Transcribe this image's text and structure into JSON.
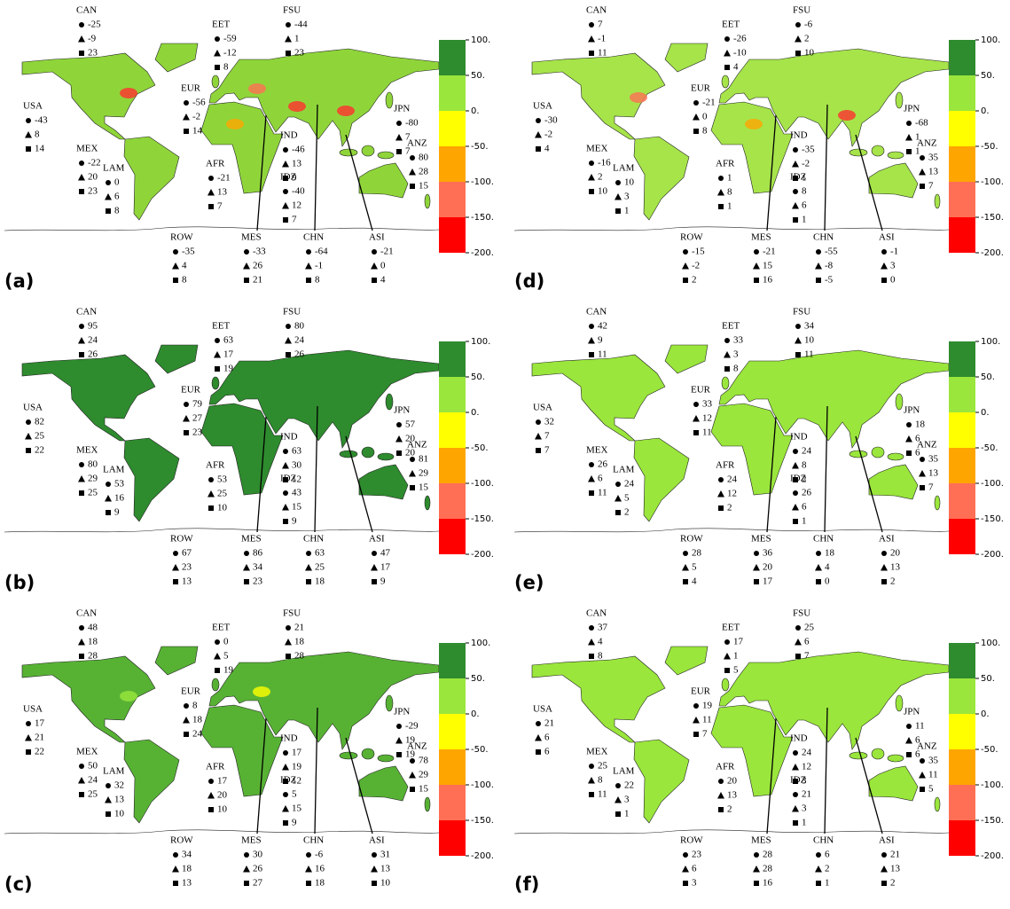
{
  "colorbar": {
    "ylim": [
      -200,
      100
    ],
    "ticks": [
      {
        "value": 100,
        "label": "100."
      },
      {
        "value": 50,
        "label": "50."
      },
      {
        "value": 0,
        "label": "0."
      },
      {
        "value": -50,
        "label": "-50."
      },
      {
        "value": -100,
        "label": "-100."
      },
      {
        "value": -150,
        "label": "-150."
      },
      {
        "value": -200,
        "label": "-200."
      }
    ],
    "colors": [
      "#2e8b2e",
      "#9ae63c",
      "#ffff00",
      "#ffa500",
      "#ff6f55",
      "#ff0000"
    ]
  },
  "panels": [
    {
      "label": "(a)",
      "regions": [
        {
          "name": "CAN",
          "values": [
            -25,
            -9,
            23
          ]
        },
        {
          "name": "EET",
          "values": [
            -59,
            -12,
            8
          ]
        },
        {
          "name": "FSU",
          "values": [
            -44,
            1,
            23
          ]
        },
        {
          "name": "USA",
          "values": [
            -43,
            8,
            14
          ]
        },
        {
          "name": "MEX",
          "values": [
            -22,
            20,
            23
          ]
        },
        {
          "name": "LAM",
          "values": [
            0,
            6,
            8
          ]
        },
        {
          "name": "EUR",
          "values": [
            -56,
            -2,
            14
          ]
        },
        {
          "name": "AFR",
          "values": [
            -21,
            13,
            7
          ]
        },
        {
          "name": "JPN",
          "values": [
            -80,
            7,
            7
          ]
        },
        {
          "name": "IND",
          "values": [
            -46,
            13,
            9
          ]
        },
        {
          "name": "IDZ",
          "values": [
            -40,
            12,
            7
          ]
        },
        {
          "name": "ANZ",
          "values": [
            80,
            28,
            15
          ]
        },
        {
          "name": "ROW",
          "values": [
            -35,
            4,
            8
          ]
        },
        {
          "name": "MES",
          "values": [
            -33,
            26,
            21
          ]
        },
        {
          "name": "CHN",
          "values": [
            -64,
            -1,
            8
          ]
        },
        {
          "name": "ASI",
          "values": [
            -21,
            0,
            4
          ]
        }
      ]
    },
    {
      "label": "(b)",
      "regions": [
        {
          "name": "CAN",
          "values": [
            95,
            24,
            26
          ]
        },
        {
          "name": "EET",
          "values": [
            63,
            17,
            19
          ]
        },
        {
          "name": "FSU",
          "values": [
            80,
            24,
            26
          ]
        },
        {
          "name": "USA",
          "values": [
            82,
            25,
            22
          ]
        },
        {
          "name": "MEX",
          "values": [
            80,
            29,
            25
          ]
        },
        {
          "name": "LAM",
          "values": [
            53,
            16,
            9
          ]
        },
        {
          "name": "EUR",
          "values": [
            79,
            27,
            23
          ]
        },
        {
          "name": "AFR",
          "values": [
            53,
            25,
            10
          ]
        },
        {
          "name": "JPN",
          "values": [
            57,
            20,
            20
          ]
        },
        {
          "name": "IND",
          "values": [
            63,
            30,
            12
          ]
        },
        {
          "name": "IDZ",
          "values": [
            43,
            15,
            9
          ]
        },
        {
          "name": "ANZ",
          "values": [
            81,
            29,
            15
          ]
        },
        {
          "name": "ROW",
          "values": [
            67,
            23,
            13
          ]
        },
        {
          "name": "MES",
          "values": [
            86,
            34,
            23
          ]
        },
        {
          "name": "CHN",
          "values": [
            63,
            25,
            18
          ]
        },
        {
          "name": "ASI",
          "values": [
            47,
            17,
            9
          ]
        }
      ]
    },
    {
      "label": "(c)",
      "regions": [
        {
          "name": "CAN",
          "values": [
            48,
            18,
            28
          ]
        },
        {
          "name": "EET",
          "values": [
            0,
            5,
            19
          ]
        },
        {
          "name": "FSU",
          "values": [
            21,
            18,
            28
          ]
        },
        {
          "name": "USA",
          "values": [
            17,
            21,
            22
          ]
        },
        {
          "name": "MEX",
          "values": [
            50,
            24,
            25
          ]
        },
        {
          "name": "LAM",
          "values": [
            32,
            13,
            10
          ]
        },
        {
          "name": "EUR",
          "values": [
            8,
            18,
            24
          ]
        },
        {
          "name": "AFR",
          "values": [
            17,
            20,
            10
          ]
        },
        {
          "name": "JPN",
          "values": [
            -29,
            19,
            19
          ]
        },
        {
          "name": "IND",
          "values": [
            17,
            19,
            12
          ]
        },
        {
          "name": "IDZ",
          "values": [
            5,
            15,
            9
          ]
        },
        {
          "name": "ANZ",
          "values": [
            78,
            29,
            15
          ]
        },
        {
          "name": "ROW",
          "values": [
            34,
            18,
            13
          ]
        },
        {
          "name": "MES",
          "values": [
            30,
            26,
            27
          ]
        },
        {
          "name": "CHN",
          "values": [
            -6,
            16,
            18
          ]
        },
        {
          "name": "ASI",
          "values": [
            31,
            13,
            10
          ]
        }
      ]
    },
    {
      "label": "(d)",
      "regions": [
        {
          "name": "CAN",
          "values": [
            7,
            -1,
            11
          ]
        },
        {
          "name": "EET",
          "values": [
            -26,
            -10,
            4
          ]
        },
        {
          "name": "FSU",
          "values": [
            -6,
            2,
            10
          ]
        },
        {
          "name": "USA",
          "values": [
            -30,
            -2,
            4
          ]
        },
        {
          "name": "MEX",
          "values": [
            -16,
            2,
            10
          ]
        },
        {
          "name": "LAM",
          "values": [
            10,
            3,
            1
          ]
        },
        {
          "name": "EUR",
          "values": [
            -21,
            0,
            8
          ]
        },
        {
          "name": "AFR",
          "values": [
            1,
            8,
            1
          ]
        },
        {
          "name": "JPN",
          "values": [
            -68,
            1,
            1
          ]
        },
        {
          "name": "IND",
          "values": [
            -35,
            -2,
            1
          ]
        },
        {
          "name": "IDZ",
          "values": [
            8,
            6,
            1
          ]
        },
        {
          "name": "ANZ",
          "values": [
            35,
            13,
            7
          ]
        },
        {
          "name": "ROW",
          "values": [
            -15,
            -2,
            2
          ]
        },
        {
          "name": "MES",
          "values": [
            -21,
            15,
            16
          ]
        },
        {
          "name": "CHN",
          "values": [
            -55,
            -8,
            -5
          ]
        },
        {
          "name": "ASI",
          "values": [
            -1,
            3,
            0
          ]
        }
      ]
    },
    {
      "label": "(e)",
      "regions": [
        {
          "name": "CAN",
          "values": [
            42,
            9,
            11
          ]
        },
        {
          "name": "EET",
          "values": [
            33,
            3,
            8
          ]
        },
        {
          "name": "FSU",
          "values": [
            34,
            10,
            11
          ]
        },
        {
          "name": "USA",
          "values": [
            32,
            7,
            7
          ]
        },
        {
          "name": "MEX",
          "values": [
            26,
            6,
            11
          ]
        },
        {
          "name": "LAM",
          "values": [
            24,
            5,
            2
          ]
        },
        {
          "name": "EUR",
          "values": [
            33,
            12,
            11
          ]
        },
        {
          "name": "AFR",
          "values": [
            24,
            12,
            2
          ]
        },
        {
          "name": "JPN",
          "values": [
            18,
            6,
            6
          ]
        },
        {
          "name": "IND",
          "values": [
            24,
            8,
            2
          ]
        },
        {
          "name": "IDZ",
          "values": [
            26,
            6,
            1
          ]
        },
        {
          "name": "ANZ",
          "values": [
            35,
            13,
            7
          ]
        },
        {
          "name": "ROW",
          "values": [
            28,
            5,
            4
          ]
        },
        {
          "name": "MES",
          "values": [
            36,
            20,
            17
          ]
        },
        {
          "name": "CHN",
          "values": [
            18,
            4,
            0
          ]
        },
        {
          "name": "ASI",
          "values": [
            20,
            13,
            2
          ]
        }
      ]
    },
    {
      "label": "(f)",
      "regions": [
        {
          "name": "CAN",
          "values": [
            37,
            4,
            8
          ]
        },
        {
          "name": "EET",
          "values": [
            17,
            1,
            5
          ]
        },
        {
          "name": "FSU",
          "values": [
            25,
            6,
            7
          ]
        },
        {
          "name": "USA",
          "values": [
            21,
            6,
            6
          ]
        },
        {
          "name": "MEX",
          "values": [
            25,
            8,
            11
          ]
        },
        {
          "name": "LAM",
          "values": [
            22,
            3,
            1
          ]
        },
        {
          "name": "EUR",
          "values": [
            19,
            11,
            7
          ]
        },
        {
          "name": "AFR",
          "values": [
            20,
            13,
            2
          ]
        },
        {
          "name": "JPN",
          "values": [
            11,
            6,
            6
          ]
        },
        {
          "name": "IND",
          "values": [
            24,
            12,
            3
          ]
        },
        {
          "name": "IDZ",
          "values": [
            21,
            3,
            1
          ]
        },
        {
          "name": "ANZ",
          "values": [
            35,
            11,
            5
          ]
        },
        {
          "name": "ROW",
          "values": [
            23,
            6,
            3
          ]
        },
        {
          "name": "MES",
          "values": [
            28,
            28,
            16
          ]
        },
        {
          "name": "CHN",
          "values": [
            6,
            2,
            1
          ]
        },
        {
          "name": "ASI",
          "values": [
            21,
            13,
            2
          ]
        }
      ]
    }
  ]
}
